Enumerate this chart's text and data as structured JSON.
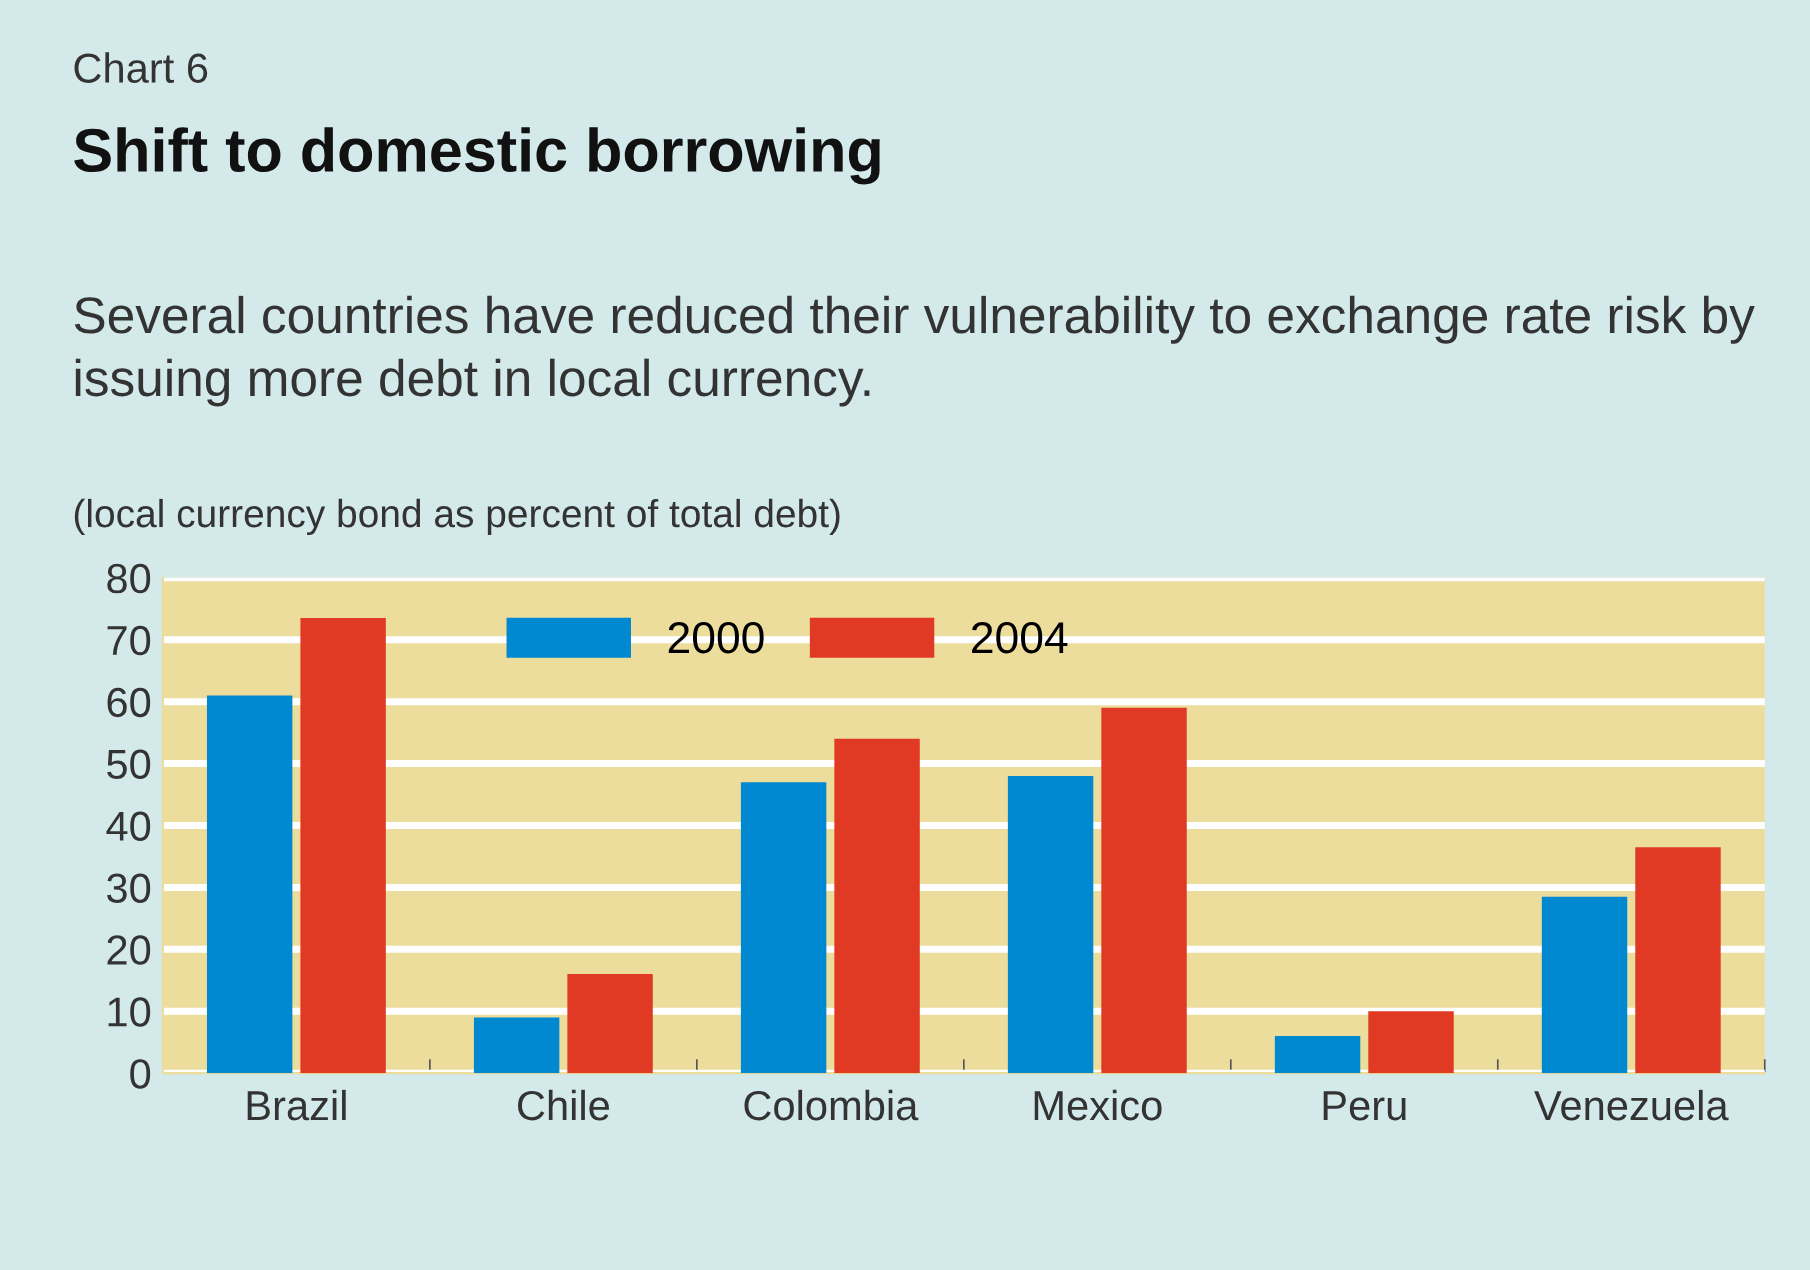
{
  "chart_data": {
    "type": "bar",
    "title": "Shift to domestic borrowing",
    "subtitle": "Several countries have reduced their vulnerability to exchange rate risk by issuing more debt in local currency.",
    "ylabel": "(local currency bond as percent of total debt)",
    "annotations": [
      "Chart 6"
    ],
    "categories": [
      "Brazil",
      "Chile",
      "Colombia",
      "Mexico",
      "Peru",
      "Venezuela"
    ],
    "series": [
      {
        "name": "2000",
        "color": "#0088d0",
        "values": [
          61,
          9,
          47,
          48,
          6,
          28.5
        ]
      },
      {
        "name": "2004",
        "color": "#e03a25",
        "values": [
          73.5,
          16,
          54,
          59,
          10,
          36.5
        ]
      }
    ],
    "ylim": [
      0,
      80
    ],
    "yticks": [
      0,
      10,
      20,
      30,
      40,
      50,
      60,
      70,
      80
    ],
    "grid": "y",
    "legend": "top"
  }
}
